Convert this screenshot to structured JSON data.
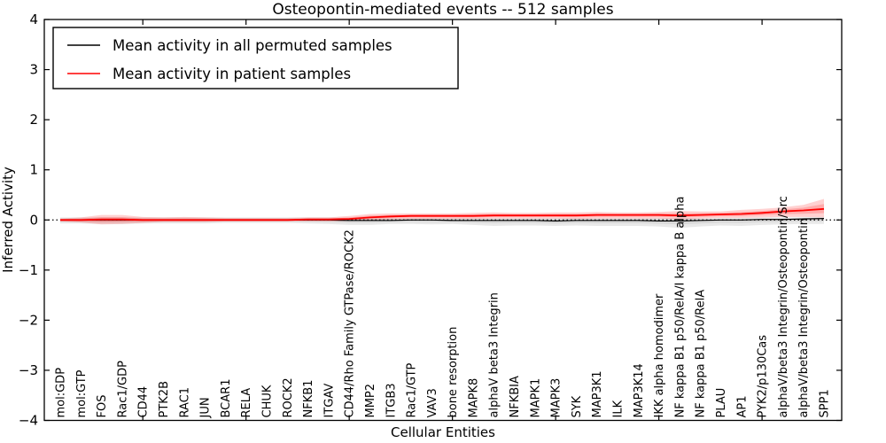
{
  "chart_data": {
    "type": "line",
    "title": "Osteopontin-mediated events -- 512 samples",
    "xlabel": "Cellular Entities",
    "ylabel": "Inferred Activity",
    "ylim": [
      -4,
      4
    ],
    "yticks": [
      -4,
      -3,
      -2,
      -1,
      0,
      1,
      2,
      3,
      4
    ],
    "xtick_positions": [
      5,
      10,
      15,
      20,
      25,
      30,
      35
    ],
    "grid": false,
    "zero_line": true,
    "legend_position": "upper left",
    "categories": [
      "mol:GDP",
      "mol:GTP",
      "FOS",
      "Rac1/GDP",
      "CD44",
      "PTK2B",
      "RAC1",
      "JUN",
      "BCAR1",
      "RELA",
      "CHUK",
      "ROCK2",
      "NFKB1",
      "ITGAV",
      "CD44/Rho Family GTPase/ROCK2",
      "MMP2",
      "ITGB3",
      "Rac1/GTP",
      "VAV3",
      "bone resorption",
      "MAPK8",
      "alphaV beta3 Integrin",
      "NFKBIA",
      "MAPK1",
      "MAPK3",
      "SYK",
      "MAP3K1",
      "ILK",
      "MAP3K14",
      "IKK alpha homodimer",
      "NF kappa B1 p50/RelA/I kappa B alpha",
      "NF kappa B1 p50/RelA",
      "PLAU",
      "AP1",
      "PYK2/p130Cas",
      "alphaV/beta3 Integrin/Osteopontin/Src",
      "alphaV/beta3 Integrin/Osteopontin",
      "SPP1"
    ],
    "series": [
      {
        "name": "Mean activity in all permuted samples",
        "color": "#000000",
        "band_color": "#999999",
        "band_opacity": 0.22,
        "values": [
          0,
          0,
          0,
          0,
          0,
          0,
          0,
          0,
          0,
          0,
          0,
          0,
          0,
          0,
          -0.01,
          -0.01,
          -0.01,
          0,
          0,
          -0.01,
          -0.01,
          -0.01,
          -0.01,
          -0.01,
          -0.02,
          -0.01,
          -0.01,
          -0.01,
          -0.01,
          -0.02,
          -0.02,
          -0.01,
          0,
          0,
          0.01,
          0.01,
          0.02,
          0.03
        ],
        "band_upper": [
          0.05,
          0.05,
          0.05,
          0.05,
          0.05,
          0.05,
          0.05,
          0.05,
          0.05,
          0.05,
          0.05,
          0.05,
          0.05,
          0.05,
          0.04,
          0.04,
          0.04,
          0.04,
          0.04,
          0.04,
          0.04,
          0.04,
          0.04,
          0.04,
          0.04,
          0.04,
          0.04,
          0.04,
          0.04,
          0.04,
          0.04,
          0.04,
          0.04,
          0.04,
          0.05,
          0.05,
          0.05,
          0.06
        ],
        "band_lower": [
          -0.07,
          -0.07,
          -0.08,
          -0.08,
          -0.07,
          -0.07,
          -0.07,
          -0.07,
          -0.06,
          -0.06,
          -0.06,
          -0.06,
          -0.07,
          -0.08,
          -0.1,
          -0.1,
          -0.08,
          -0.08,
          -0.09,
          -0.08,
          -0.1,
          -0.12,
          -0.11,
          -0.11,
          -0.12,
          -0.11,
          -0.12,
          -0.12,
          -0.12,
          -0.13,
          -0.16,
          -0.13,
          -0.11,
          -0.12,
          -0.1,
          -0.09,
          -0.08,
          -0.08
        ]
      },
      {
        "name": "Mean activity in patient samples",
        "color": "#ff0000",
        "band_color": "#ff0000",
        "band_opacity": 0.18,
        "values": [
          0,
          0,
          0.01,
          0.01,
          0,
          0,
          0,
          0,
          0,
          0,
          0,
          0,
          0.01,
          0.01,
          0.02,
          0.05,
          0.07,
          0.08,
          0.08,
          0.08,
          0.08,
          0.09,
          0.09,
          0.09,
          0.09,
          0.09,
          0.1,
          0.1,
          0.1,
          0.1,
          0.09,
          0.1,
          0.11,
          0.12,
          0.14,
          0.17,
          0.19,
          0.22
        ],
        "band_upper": [
          0.03,
          0.05,
          0.1,
          0.1,
          0.06,
          0.05,
          0.06,
          0.05,
          0.04,
          0.04,
          0.04,
          0.04,
          0.05,
          0.05,
          0.08,
          0.12,
          0.13,
          0.13,
          0.13,
          0.13,
          0.14,
          0.15,
          0.14,
          0.14,
          0.15,
          0.15,
          0.16,
          0.15,
          0.15,
          0.16,
          0.18,
          0.17,
          0.17,
          0.2,
          0.22,
          0.25,
          0.3,
          0.42
        ],
        "band_lower": [
          -0.03,
          -0.05,
          -0.09,
          -0.08,
          -0.06,
          -0.04,
          -0.04,
          -0.04,
          -0.03,
          -0.03,
          -0.03,
          -0.03,
          -0.03,
          -0.03,
          -0.02,
          0,
          0.01,
          0.02,
          0.02,
          0.02,
          0.02,
          0.03,
          0.03,
          0.03,
          0.03,
          0.02,
          0.03,
          0.03,
          0.03,
          0.03,
          0.01,
          0.03,
          0.04,
          0.04,
          0.05,
          0.06,
          0.06,
          0.05
        ]
      }
    ]
  }
}
